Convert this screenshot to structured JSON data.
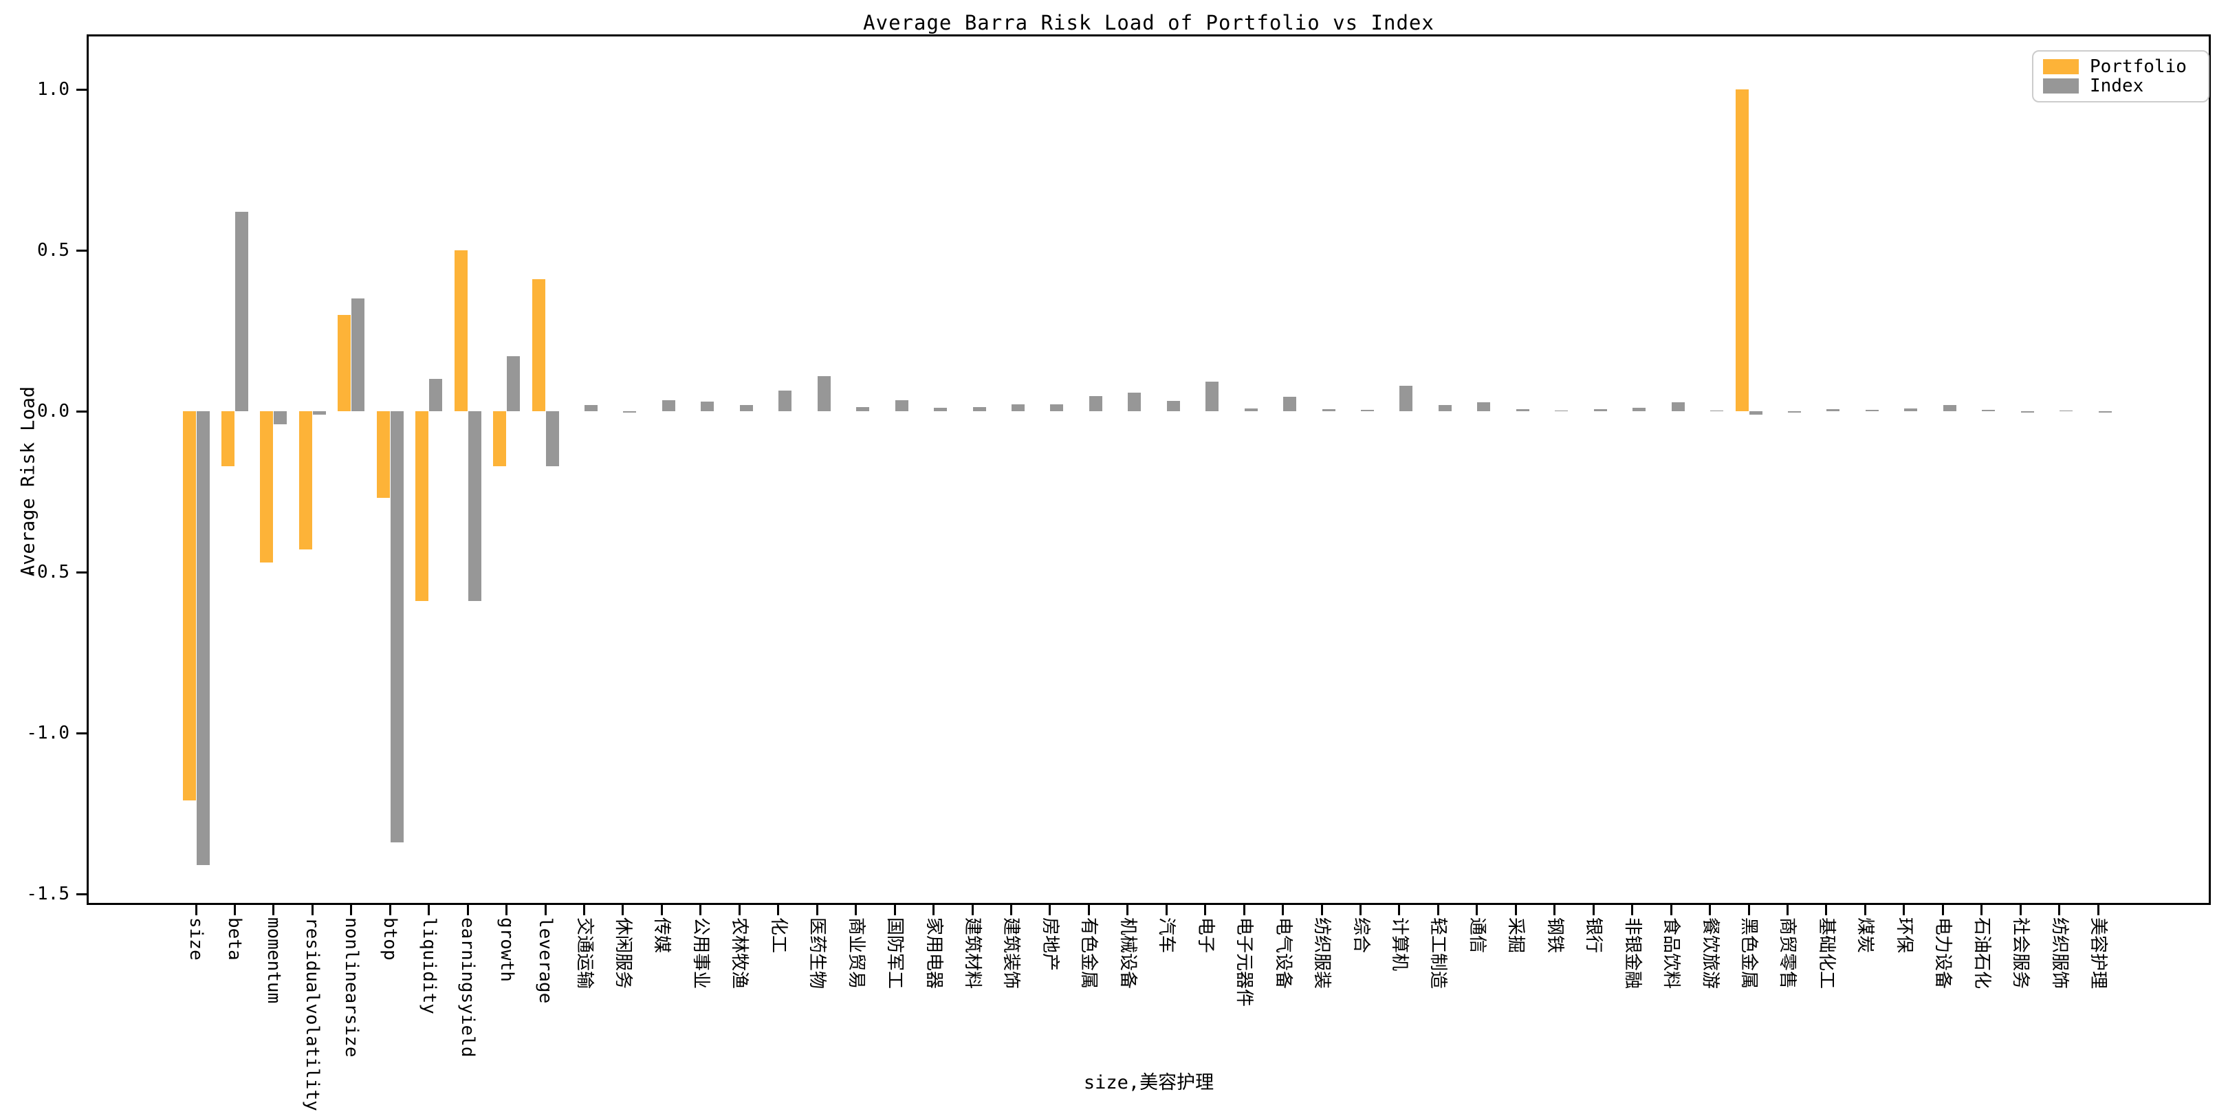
{
  "title": "Average Barra Risk Load of Portfolio vs Index",
  "y_axis_label": "Average Risk Load",
  "x_axis_label": "size,美容护理",
  "legend": {
    "portfolio_label": "Portfolio",
    "index_label": "Index"
  },
  "colors": {
    "portfolio": "#FDB338",
    "index": "#979797",
    "spine": "#000000",
    "legend_border": "#cccccc"
  },
  "chart_data": {
    "type": "bar",
    "title": "Average Barra Risk Load of Portfolio vs Index",
    "xlabel": "size,美容护理",
    "ylabel": "Average Risk Load",
    "legend_position": "upper right",
    "grid": false,
    "ylim": [
      -1.53,
      1.17
    ],
    "yticks": [
      1.0,
      0.5,
      0.0,
      -0.5,
      -1.0,
      -1.5
    ],
    "categories": [
      "size",
      "beta",
      "momentum",
      "residualvolatility",
      "nonlinearsize",
      "btop",
      "liquidity",
      "earningsyield",
      "growth",
      "leverage",
      "交通运输",
      "休闲服务",
      "传媒",
      "公用事业",
      "农林牧渔",
      "化工",
      "医药生物",
      "商业贸易",
      "国防军工",
      "家用电器",
      "建筑材料",
      "建筑装饰",
      "房地产",
      "有色金属",
      "机械设备",
      "汽车",
      "电子",
      "电子元器件",
      "电气设备",
      "纺织服装",
      "综合",
      "计算机",
      "轻工制造",
      "通信",
      "采掘",
      "钢铁",
      "银行",
      "非银金融",
      "食品饮料",
      "餐饮旅游",
      "黑色金属",
      "商贸零售",
      "基础化工",
      "煤炭",
      "环保",
      "电力设备",
      "石油石化",
      "社会服务",
      "纺织服饰",
      "美容护理"
    ],
    "series": [
      {
        "name": "Portfolio",
        "color": "#FDB338",
        "values": [
          -1.21,
          -0.17,
          -0.47,
          -0.43,
          0.3,
          -0.27,
          -0.59,
          0.5,
          -0.17,
          0.41,
          0,
          0,
          0,
          0,
          0,
          0,
          0,
          0,
          0,
          0,
          0,
          0,
          0,
          0,
          0,
          0,
          0,
          0,
          0,
          0,
          0,
          0,
          0,
          0,
          0,
          0,
          0,
          0,
          0,
          0,
          1.0,
          0,
          0,
          0,
          0,
          0,
          0,
          0,
          0,
          0
        ]
      },
      {
        "name": "Index",
        "color": "#979797",
        "values": [
          -1.41,
          0.62,
          -0.04,
          -0.01,
          0.35,
          -1.34,
          0.1,
          -0.59,
          0.17,
          -0.17,
          0.02,
          -0.004,
          0.035,
          0.03,
          0.02,
          0.065,
          0.11,
          0.012,
          0.035,
          0.01,
          0.012,
          0.022,
          0.022,
          0.047,
          0.057,
          0.032,
          0.091,
          0.009,
          0.044,
          0.007,
          0.004,
          0.08,
          0.02,
          0.027,
          0.006,
          0.002,
          0.006,
          0.011,
          0.027,
          0.001,
          -0.01,
          -0.004,
          0.007,
          0.005,
          0.008,
          0.019,
          0.004,
          -0.003,
          0.001,
          -0.003
        ]
      }
    ]
  }
}
